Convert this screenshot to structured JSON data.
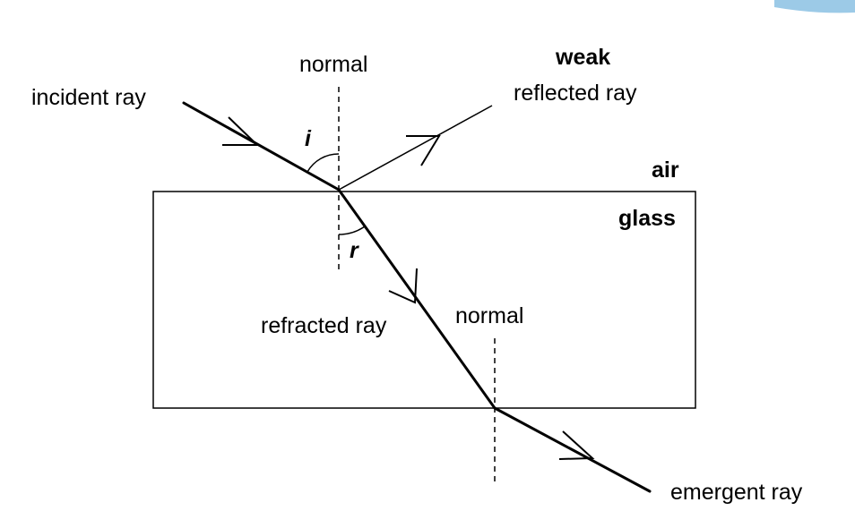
{
  "labels": {
    "incident_ray": "incident ray",
    "normal_top": "normal",
    "weak": "weak",
    "reflected_ray": "reflected ray",
    "air": "air",
    "glass": "glass",
    "angle_i": "i",
    "angle_r": "r",
    "refracted_ray": "refracted ray",
    "normal_bottom": "normal",
    "emergent_ray": "emergent ray"
  },
  "colors": {
    "ink": "#000000",
    "corner_accent": "#4a9fd4"
  }
}
